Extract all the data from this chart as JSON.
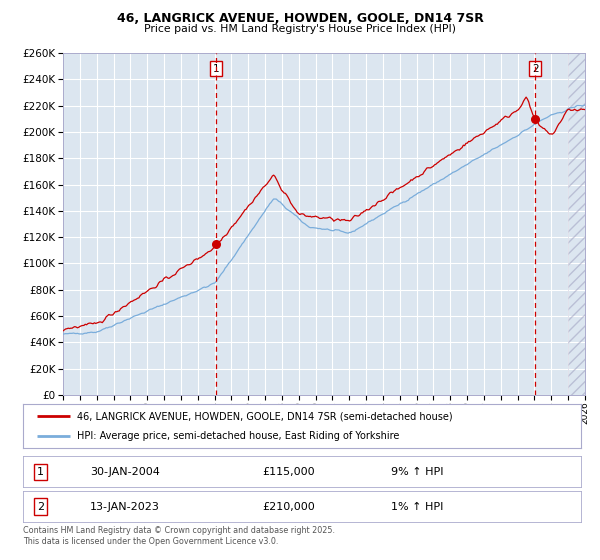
{
  "title_line1": "46, LANGRICK AVENUE, HOWDEN, GOOLE, DN14 7SR",
  "title_line2": "Price paid vs. HM Land Registry's House Price Index (HPI)",
  "legend_line1": "46, LANGRICK AVENUE, HOWDEN, GOOLE, DN14 7SR (semi-detached house)",
  "legend_line2": "HPI: Average price, semi-detached house, East Riding of Yorkshire",
  "marker1_date": "30-JAN-2004",
  "marker1_price": "£115,000",
  "marker1_hpi": "9% ↑ HPI",
  "marker2_date": "13-JAN-2023",
  "marker2_price": "£210,000",
  "marker2_hpi": "1% ↑ HPI",
  "footnote": "Contains HM Land Registry data © Crown copyright and database right 2025.\nThis data is licensed under the Open Government Licence v3.0.",
  "red_line_color": "#cc0000",
  "blue_line_color": "#7aaddb",
  "bg_color": "#dce6f0",
  "grid_color": "#ffffff",
  "vline_color": "#cc0000",
  "marker_color": "#cc0000",
  "ylim_min": 0,
  "ylim_max": 260000,
  "yticks": [
    0,
    20000,
    40000,
    60000,
    80000,
    100000,
    120000,
    140000,
    160000,
    180000,
    200000,
    220000,
    240000,
    260000
  ],
  "xmin": 1995,
  "xmax": 2026,
  "marker1_year": 2004.08,
  "marker1_val": 115000,
  "marker2_year": 2023.04,
  "marker2_val": 210000
}
